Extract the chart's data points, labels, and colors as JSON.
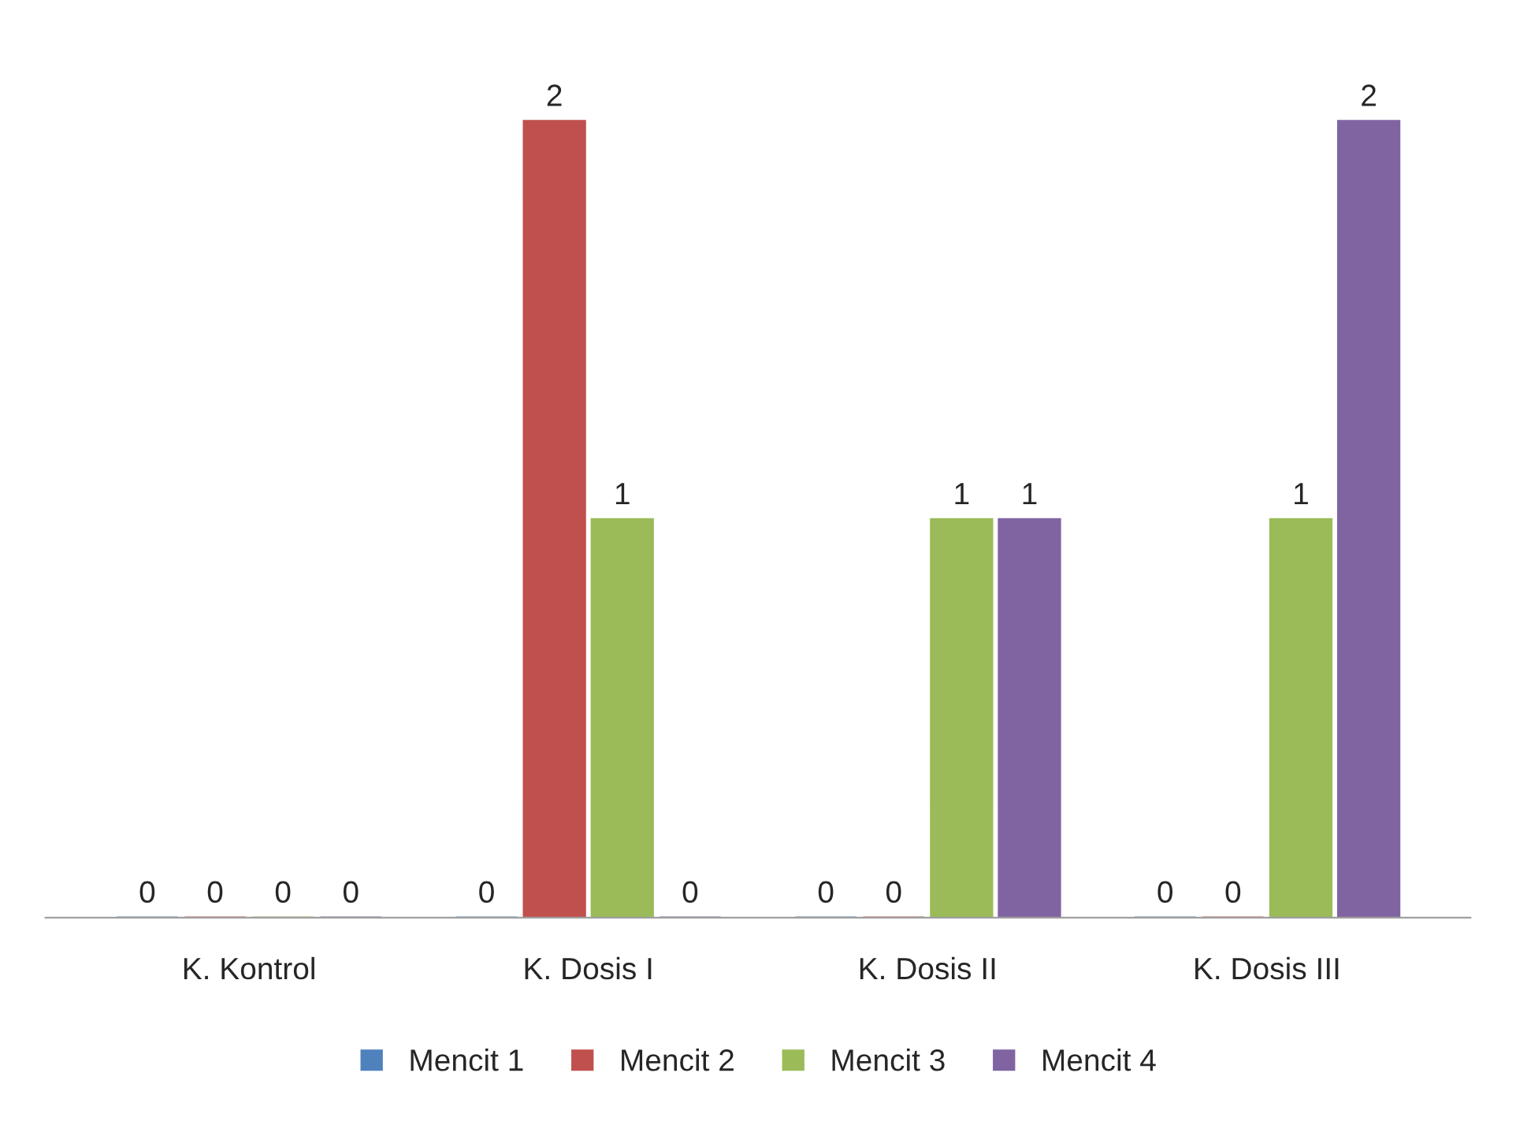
{
  "chart_data": {
    "type": "bar",
    "categories": [
      "K. Kontrol",
      "K. Dosis I",
      "K. Dosis II",
      "K. Dosis III"
    ],
    "series": [
      {
        "name": "Mencit 1",
        "color": "#4f81bd",
        "values": [
          0,
          0,
          0,
          0
        ]
      },
      {
        "name": "Mencit 2",
        "color": "#c0504d",
        "values": [
          0,
          2,
          0,
          0
        ]
      },
      {
        "name": "Mencit 3",
        "color": "#9bbb59",
        "values": [
          0,
          1,
          1,
          1
        ]
      },
      {
        "name": "Mencit 4",
        "color": "#8064a2",
        "values": [
          0,
          0,
          1,
          2
        ]
      }
    ],
    "data_labels": true,
    "grid": false,
    "legend": "bottom"
  }
}
